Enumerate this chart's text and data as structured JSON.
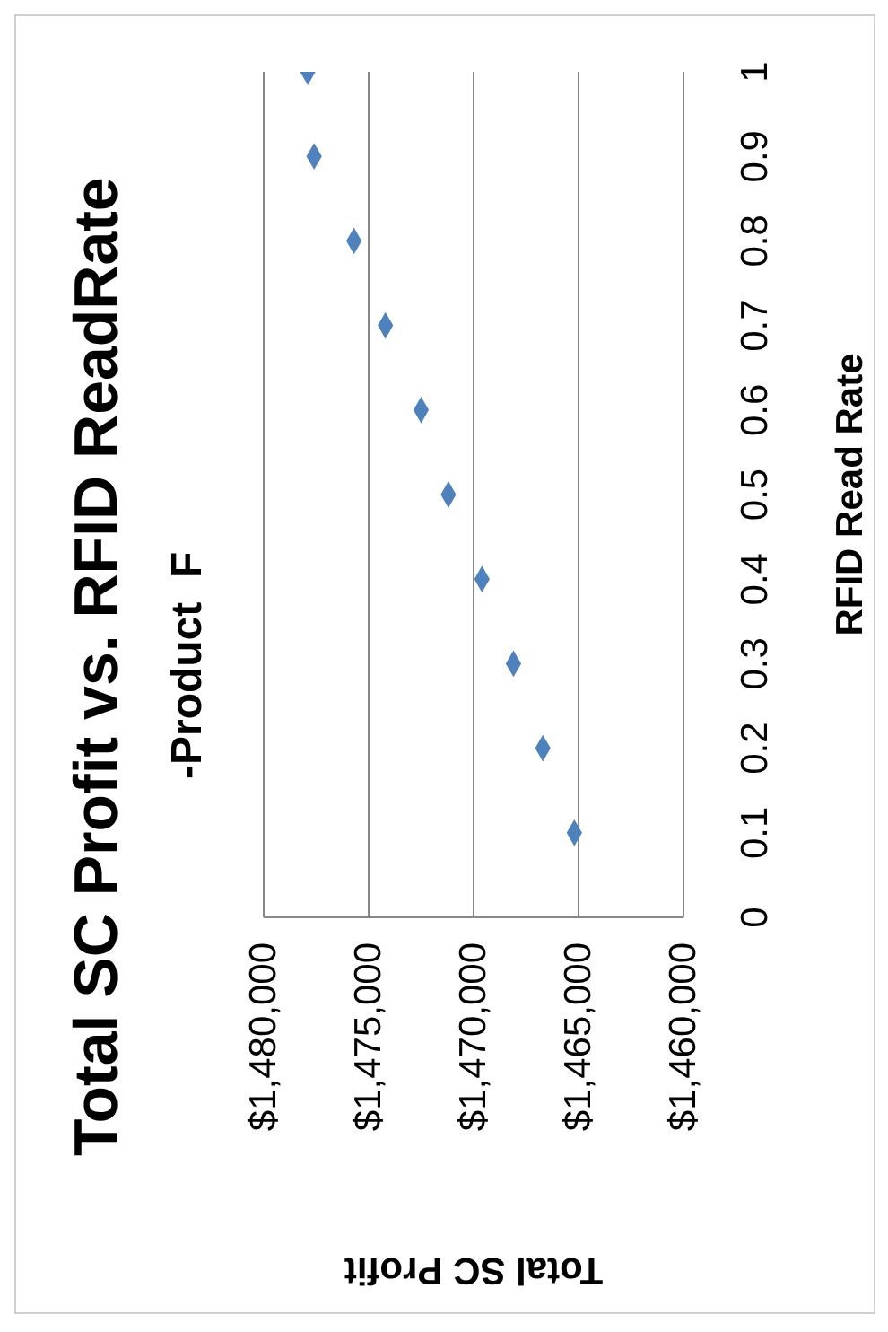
{
  "chart_data": {
    "type": "scatter",
    "title": "Total SC Profit vs. RFID ReadRate",
    "subtitle": "-Product  F",
    "xlabel": "Total  SC Profit",
    "ylabel": "RFID Read Rate",
    "series": [
      {
        "color": "#4f81bd",
        "x": [
          1465200,
          1466700,
          1468100,
          1469600,
          1471200,
          1472500,
          1474200,
          1475700,
          1477600,
          1477900
        ],
        "values": [
          0.1,
          0.2,
          0.3,
          0.4,
          0.5,
          0.6,
          0.7,
          0.8,
          0.9,
          1
        ]
      }
    ],
    "xlim": [
      1480000,
      1460000
    ],
    "xticks": [
      {
        "value": 1480000,
        "label": "$1,480,000"
      },
      {
        "value": 1475000,
        "label": "$1,475,000"
      },
      {
        "value": 1470000,
        "label": "$1,470,000"
      },
      {
        "value": 1465000,
        "label": "$1,465,000"
      },
      {
        "value": 1460000,
        "label": "$1,460,000"
      }
    ],
    "ylim": [
      0,
      1
    ],
    "yticks": [
      0,
      0.1,
      0.2,
      0.3,
      0.4,
      0.5,
      0.6,
      0.7,
      0.8,
      0.9,
      1
    ],
    "grid": "x",
    "marker": "diamond",
    "legend": false
  }
}
